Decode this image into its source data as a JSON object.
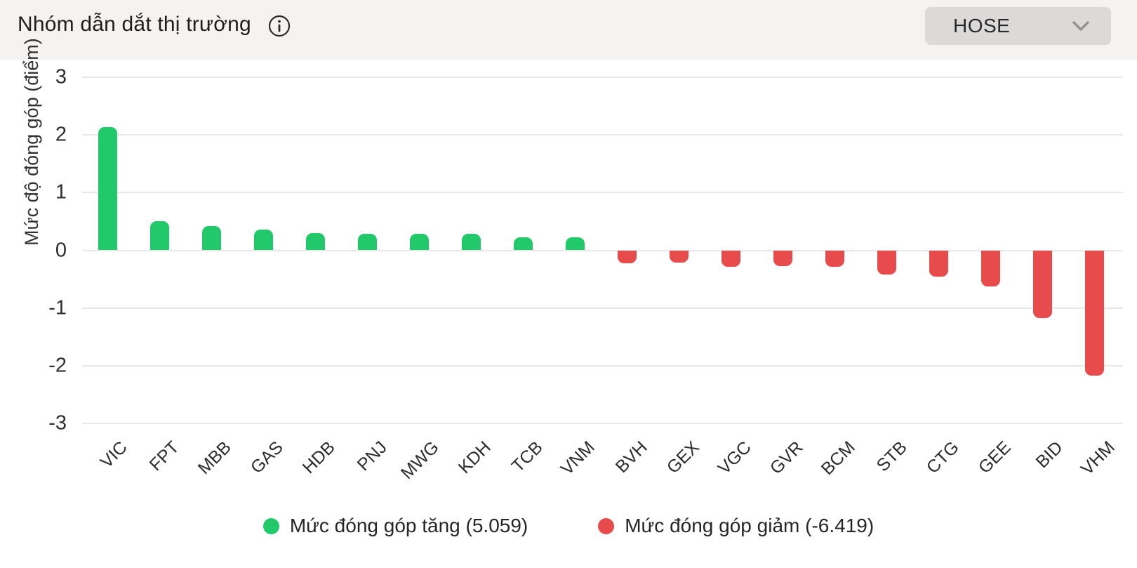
{
  "header": {
    "title": "Nhóm dẫn dắt thị trường",
    "exchange_selector": {
      "value": "HOSE"
    }
  },
  "colors": {
    "positive": "#22c96a",
    "negative": "#e84b4c",
    "gridline": "#e9e8e8",
    "header_bg": "#f5f3f2",
    "selector_bg": "#ddd9d6"
  },
  "chart_data": {
    "type": "bar",
    "categories": [
      "VIC",
      "FPT",
      "MBB",
      "GAS",
      "HDB",
      "PNJ",
      "MWG",
      "KDH",
      "TCB",
      "VNM",
      "BVH",
      "GEX",
      "VGC",
      "GVR",
      "BCM",
      "STB",
      "CTG",
      "GEE",
      "BID",
      "VHM"
    ],
    "values": [
      2.14,
      0.5,
      0.42,
      0.36,
      0.3,
      0.28,
      0.28,
      0.28,
      0.22,
      0.22,
      -0.22,
      -0.21,
      -0.28,
      -0.27,
      -0.29,
      -0.42,
      -0.46,
      -0.63,
      -1.17,
      -2.17
    ],
    "title": "Nhóm dẫn dắt thị trường",
    "xlabel": "",
    "ylabel": "Mức độ đóng góp (điểm)",
    "ylim": [
      -3,
      3
    ],
    "yticks": [
      3,
      2,
      1,
      0,
      -1,
      -2,
      -3
    ],
    "grid": true,
    "legend_position": "bottom",
    "legend": [
      {
        "label": "Mức đóng góp tăng (5.059)",
        "color": "#22c96a"
      },
      {
        "label": "Mức đóng góp giảm (-6.419)",
        "color": "#e84b4c"
      }
    ]
  }
}
